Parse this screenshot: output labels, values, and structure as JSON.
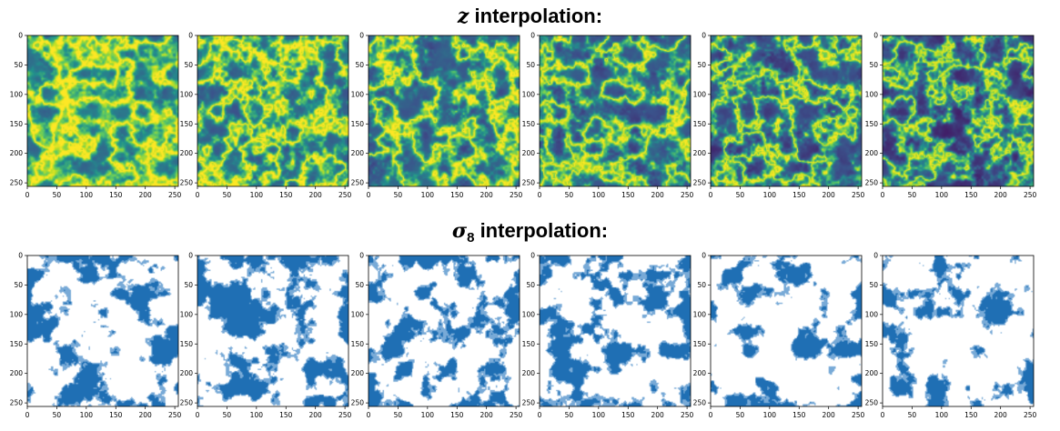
{
  "figure": {
    "rows": [
      {
        "id": "z",
        "title_symbol": "z",
        "title_subscript": "",
        "title_text": " interpolation:",
        "colormap": "viridis",
        "panel_count": 6
      },
      {
        "id": "sigma8",
        "title_symbol": "σ",
        "title_subscript": "8",
        "title_text": " interpolation:",
        "colormap": "blue-threshold",
        "panel_count": 6
      }
    ],
    "axes": {
      "x_ticks": [
        "0",
        "50",
        "100",
        "150",
        "200",
        "250"
      ],
      "y_ticks": [
        "0",
        "50",
        "100",
        "150",
        "200",
        "250"
      ],
      "x_range": [
        0,
        256
      ],
      "y_range": [
        0,
        256
      ]
    },
    "colors": {
      "viridis_dark": "#3b1e6e",
      "viridis_mid": "#21918c",
      "viridis_bright": "#d4e21a",
      "blue_fill": "#1f6fb4",
      "background": "#ffffff"
    }
  }
}
